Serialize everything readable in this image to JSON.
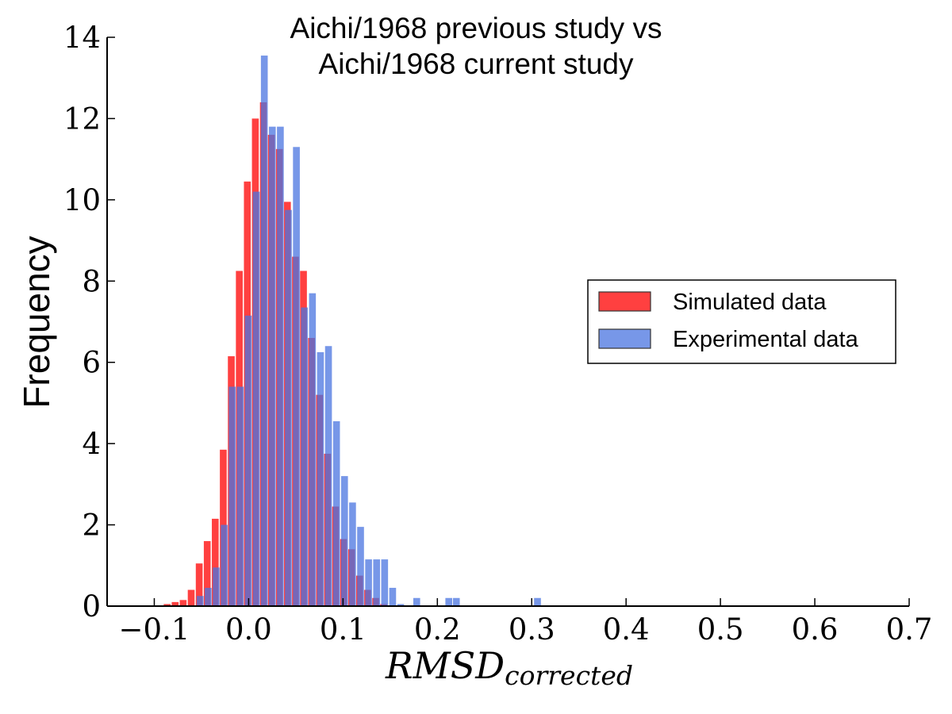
{
  "chart_data": {
    "type": "bar",
    "title_lines": [
      "Aichi/1968 previous study vs",
      "Aichi/1968 current study"
    ],
    "xlabel_main": "RMSD",
    "xlabel_sub": "corrected",
    "ylabel": "Frequency",
    "xlim": [
      -0.15,
      0.7
    ],
    "ylim": [
      0,
      14
    ],
    "xticks": [
      -0.1,
      0.0,
      0.1,
      0.2,
      0.3,
      0.4,
      0.5,
      0.6,
      0.7
    ],
    "xtick_labels": [
      "−0.1",
      "0.0",
      "0.1",
      "0.2",
      "0.3",
      "0.4",
      "0.5",
      "0.6",
      "0.7"
    ],
    "yticks": [
      0,
      2,
      4,
      6,
      8,
      10,
      12,
      14
    ],
    "ytick_labels": [
      "0",
      "2",
      "4",
      "6",
      "8",
      "10",
      "12",
      "14"
    ],
    "grid": false,
    "legend_position": "right",
    "series": [
      {
        "name": "Simulated data",
        "color": "#ff4040",
        "opacity": 1,
        "bin_width": 0.0085,
        "bins": [
          [
            -0.09,
            0.05
          ],
          [
            -0.0815,
            0.1
          ],
          [
            -0.073,
            0.15
          ],
          [
            -0.0645,
            0.4
          ],
          [
            -0.056,
            1.05
          ],
          [
            -0.0475,
            1.6
          ],
          [
            -0.039,
            2.15
          ],
          [
            -0.0305,
            3.85
          ],
          [
            -0.022,
            6.15
          ],
          [
            -0.0135,
            8.25
          ],
          [
            -0.005,
            10.45
          ],
          [
            0.0035,
            12.0
          ],
          [
            0.012,
            12.4
          ],
          [
            0.0205,
            11.6
          ],
          [
            0.029,
            11.25
          ],
          [
            0.0375,
            9.95
          ],
          [
            0.046,
            8.6
          ],
          [
            0.0545,
            8.25
          ],
          [
            0.063,
            6.6
          ],
          [
            0.0715,
            5.2
          ],
          [
            0.08,
            3.75
          ],
          [
            0.0885,
            2.45
          ],
          [
            0.097,
            1.65
          ],
          [
            0.1055,
            1.4
          ],
          [
            0.114,
            0.75
          ],
          [
            0.1225,
            0.4
          ],
          [
            0.131,
            0.2
          ],
          [
            0.1395,
            0.05
          ]
        ]
      },
      {
        "name": "Experimental data",
        "color": "#4a74e0",
        "opacity": 0.75,
        "bin_width": 0.0085,
        "bins": [
          [
            -0.055,
            0.25
          ],
          [
            -0.0465,
            0.45
          ],
          [
            -0.038,
            0.95
          ],
          [
            -0.0295,
            2.0
          ],
          [
            -0.021,
            5.4
          ],
          [
            -0.0125,
            5.4
          ],
          [
            -0.004,
            7.15
          ],
          [
            0.0045,
            10.2
          ],
          [
            0.013,
            13.55
          ],
          [
            0.0215,
            11.8
          ],
          [
            0.03,
            11.8
          ],
          [
            0.0385,
            9.75
          ],
          [
            0.047,
            11.3
          ],
          [
            0.0555,
            7.35
          ],
          [
            0.064,
            7.7
          ],
          [
            0.0725,
            6.25
          ],
          [
            0.081,
            6.4
          ],
          [
            0.0895,
            4.55
          ],
          [
            0.098,
            3.2
          ],
          [
            0.1065,
            2.55
          ],
          [
            0.115,
            1.95
          ],
          [
            0.1235,
            1.15
          ],
          [
            0.132,
            1.15
          ],
          [
            0.1405,
            1.15
          ],
          [
            0.149,
            0.45
          ],
          [
            0.1575,
            0.05
          ],
          [
            0.1745,
            0.2
          ],
          [
            0.2085,
            0.2
          ],
          [
            0.2165,
            0.2
          ],
          [
            0.3025,
            0.2
          ]
        ]
      }
    ]
  }
}
